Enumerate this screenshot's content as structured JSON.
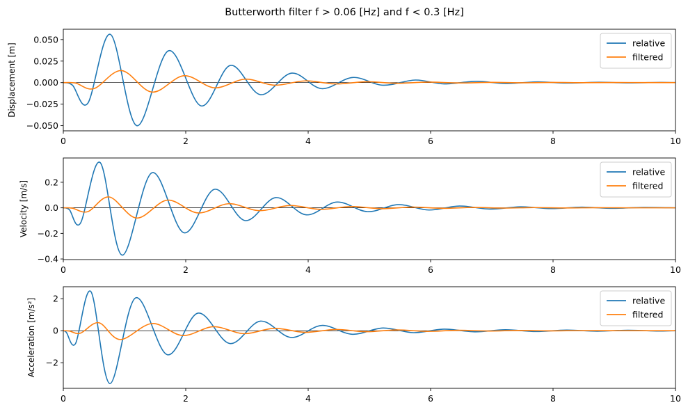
{
  "figure_title": "Butterworth filter  f > 0.06 [Hz] and f < 0.3 [Hz]",
  "series_colors": {
    "relative": "#1f77b4",
    "filtered": "#ff7f0e",
    "zero_line": "#000000"
  },
  "chart_data": [
    {
      "type": "line",
      "ylabel": "Displacement [m]",
      "xlim": [
        0,
        10
      ],
      "ylim": [
        -0.056,
        0.062
      ],
      "xticks": [
        0,
        2,
        4,
        6,
        8,
        10
      ],
      "xtick_labels": [
        "0",
        "2",
        "4",
        "6",
        "8",
        "10"
      ],
      "yticks": [
        -0.05,
        -0.025,
        0,
        0.025,
        0.05
      ],
      "ytick_labels": [
        "−0.050",
        "−0.025",
        "0.000",
        "0.025",
        "0.050"
      ],
      "grid": false,
      "zero_line": true,
      "legend_position": "top-right",
      "series": [
        {
          "name": "relative",
          "x": [
            0,
            0.15,
            0.4,
            0.77,
            1.2,
            1.72,
            2.25,
            2.73,
            3.22,
            3.73,
            4.22,
            4.73,
            5.22,
            5.75,
            6.22,
            6.75,
            7.22,
            7.75,
            8.22,
            8.75,
            9.22,
            9.75,
            10
          ],
          "y": [
            0,
            -0.003,
            -0.024,
            0.056,
            -0.05,
            0.037,
            -0.027,
            0.02,
            -0.014,
            0.011,
            -0.007,
            0.006,
            -0.003,
            0.003,
            -0.0015,
            0.0015,
            -0.001,
            0.0008,
            -0.0005,
            0.0004,
            -0.0003,
            0.0002,
            0
          ]
        },
        {
          "name": "filtered",
          "x": [
            0,
            0.2,
            0.5,
            0.95,
            1.45,
            1.97,
            2.47,
            2.97,
            3.45,
            3.95,
            4.45,
            4.95,
            5.45,
            5.95,
            6.45,
            7,
            7.5,
            8,
            8.5,
            9,
            9.5,
            10
          ],
          "y": [
            0,
            -0.0005,
            -0.007,
            0.014,
            -0.011,
            0.008,
            -0.006,
            0.004,
            -0.003,
            0.002,
            -0.0015,
            0.001,
            -0.0008,
            0.0006,
            -0.0004,
            0.0003,
            -0.0002,
            0.0002,
            -0.0001,
            0.0001,
            0,
            0
          ]
        }
      ]
    },
    {
      "type": "line",
      "ylabel": "Velocity [m/s]",
      "xlim": [
        0,
        10
      ],
      "ylim": [
        -0.405,
        0.39
      ],
      "xticks": [
        0,
        2,
        4,
        6,
        8,
        10
      ],
      "xtick_labels": [
        "0",
        "2",
        "4",
        "6",
        "8",
        "10"
      ],
      "yticks": [
        -0.4,
        -0.2,
        0,
        0.2
      ],
      "ytick_labels": [
        "−0.4",
        "−0.2",
        "0.0",
        "0.2"
      ],
      "grid": false,
      "zero_line": true,
      "legend_position": "top-right",
      "series": [
        {
          "name": "relative",
          "x": [
            0,
            0.1,
            0.28,
            0.6,
            0.96,
            1.45,
            1.97,
            2.47,
            2.97,
            3.47,
            3.97,
            4.47,
            4.97,
            5.47,
            5.97,
            6.47,
            6.97,
            7.47,
            7.97,
            8.47,
            8.97,
            9.47,
            10
          ],
          "y": [
            0,
            -0.015,
            -0.12,
            0.355,
            -0.37,
            0.275,
            -0.195,
            0.145,
            -0.1,
            0.08,
            -0.055,
            0.045,
            -0.03,
            0.025,
            -0.017,
            0.014,
            -0.01,
            0.008,
            -0.006,
            0.005,
            -0.004,
            0.003,
            0
          ]
        },
        {
          "name": "filtered",
          "x": [
            0,
            0.15,
            0.4,
            0.75,
            1.2,
            1.7,
            2.2,
            2.7,
            3.2,
            3.7,
            4.2,
            4.7,
            5.2,
            5.7,
            6.2,
            6.7,
            7.2,
            7.7,
            8.2,
            8.7,
            9.2,
            9.7,
            10
          ],
          "y": [
            0,
            -0.003,
            -0.03,
            0.085,
            -0.08,
            0.06,
            -0.04,
            0.032,
            -0.022,
            0.018,
            -0.012,
            0.01,
            -0.007,
            0.006,
            -0.004,
            0.003,
            -0.002,
            0.002,
            -0.001,
            0.001,
            0,
            0,
            0
          ]
        }
      ]
    },
    {
      "type": "line",
      "ylabel": "Acceleration [m/s²]",
      "xlim": [
        0,
        10
      ],
      "ylim": [
        -3.6,
        2.75
      ],
      "xticks": [
        0,
        2,
        4,
        6,
        8,
        10
      ],
      "xtick_labels": [
        "0",
        "2",
        "4",
        "6",
        "8",
        "10"
      ],
      "yticks": [
        -2,
        0,
        2
      ],
      "ytick_labels": [
        "−2",
        "0",
        "2"
      ],
      "grid": false,
      "zero_line": true,
      "legend_position": "top-right",
      "series": [
        {
          "name": "relative",
          "x": [
            0,
            0.05,
            0.2,
            0.45,
            0.76,
            1.18,
            1.7,
            2.2,
            2.72,
            3.22,
            3.72,
            4.22,
            4.72,
            5.22,
            5.72,
            6.22,
            6.72,
            7.22,
            7.72,
            8.22,
            8.72,
            9.22,
            9.72,
            10
          ],
          "y": [
            0,
            -0.1,
            -0.8,
            2.45,
            -3.3,
            2.05,
            -1.5,
            1.1,
            -0.8,
            0.6,
            -0.42,
            0.33,
            -0.22,
            0.17,
            -0.12,
            0.1,
            -0.07,
            0.06,
            -0.05,
            0.04,
            -0.03,
            0.03,
            -0.02,
            0
          ]
        },
        {
          "name": "filtered",
          "x": [
            0,
            0.1,
            0.28,
            0.58,
            0.93,
            1.45,
            1.95,
            2.45,
            2.95,
            3.45,
            3.95,
            4.45,
            4.95,
            5.45,
            5.95,
            6.45,
            6.95,
            7.45,
            7.95,
            8.45,
            8.95,
            9.45,
            10
          ],
          "y": [
            0,
            -0.02,
            -0.15,
            0.5,
            -0.55,
            0.45,
            -0.3,
            0.25,
            -0.18,
            0.15,
            -0.1,
            0.08,
            -0.06,
            0.05,
            -0.04,
            0.03,
            -0.02,
            0.02,
            -0.01,
            0.01,
            0,
            0,
            0
          ]
        }
      ]
    }
  ]
}
